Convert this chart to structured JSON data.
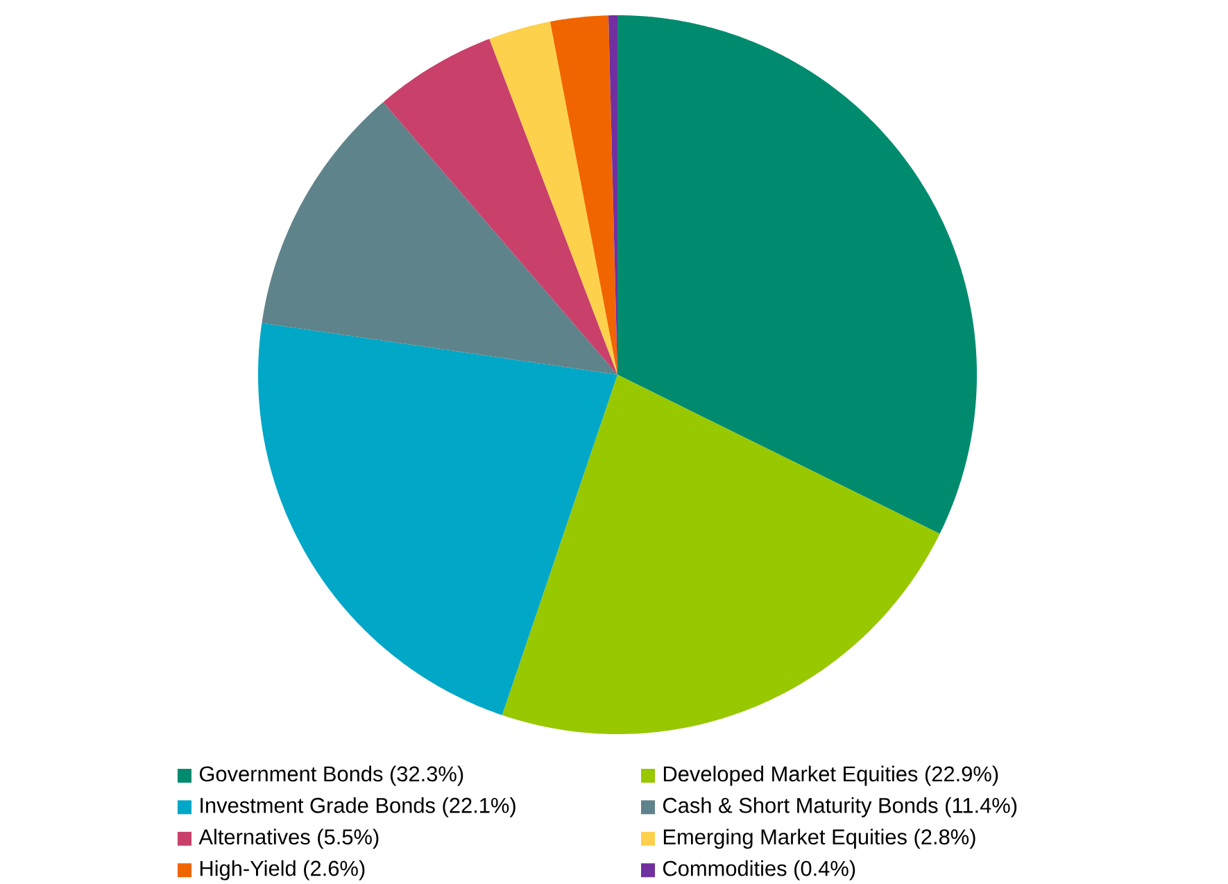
{
  "chart_data": {
    "type": "pie",
    "categories": [
      "Government Bonds (32.3%)",
      "Developed Market Equities (22.9%)",
      "Investment Grade Bonds (22.1%)",
      "Cash & Short Maturity Bonds (11.4%)",
      "Alternatives (5.5%)",
      "Emerging Market Equities (2.8%)",
      "High-Yield (2.6%)",
      "Commodities (0.4%)"
    ],
    "values": [
      32.3,
      22.9,
      22.1,
      11.4,
      5.5,
      2.8,
      2.6,
      0.4
    ],
    "colors": [
      "#008b6f",
      "#97c800",
      "#00a7c6",
      "#5f838b",
      "#c9406b",
      "#fed14c",
      "#f16500",
      "#7030a0"
    ],
    "legend": "bottom"
  }
}
